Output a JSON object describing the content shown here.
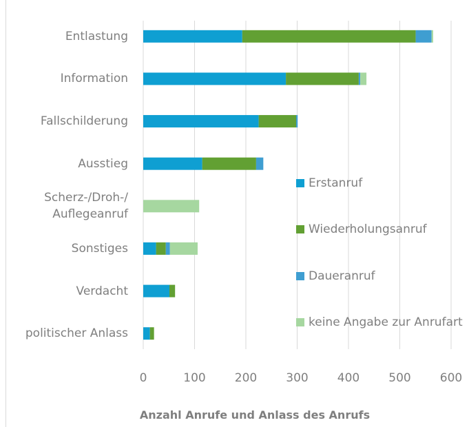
{
  "chart_data": {
    "type": "stacked-bar-horizontal",
    "x_label": "Anzahl Anrufe und Anlass des Anrufs",
    "categories": [
      "Entlastung",
      "Information",
      "Fallschilderung",
      "Ausstieg",
      "Scherz-/Droh-/\nAuflegeanruf",
      "Sonstiges",
      "Verdacht",
      "politischer Anlass"
    ],
    "series": [
      {
        "name": "Erstanruf",
        "color": "#0f9fd2",
        "values": [
          193,
          278,
          225,
          115,
          0,
          25,
          51,
          13
        ]
      },
      {
        "name": "Wiederholungsanruf",
        "color": "#62a033",
        "values": [
          338,
          142,
          73,
          105,
          0,
          19,
          11,
          8
        ]
      },
      {
        "name": "Daueranruf",
        "color": "#3f9ed1",
        "values": [
          31,
          3,
          3,
          14,
          0,
          8,
          0,
          0
        ]
      },
      {
        "name": "keine Angabe zur Anrufart",
        "color": "#a6d7a0",
        "values": [
          3,
          12,
          0,
          0,
          109,
          54,
          0,
          0
        ]
      }
    ],
    "xlim": [
      0,
      600
    ],
    "xticks": [
      0,
      100,
      200,
      300,
      400,
      500,
      600
    ],
    "grid": true,
    "legend": "right"
  }
}
